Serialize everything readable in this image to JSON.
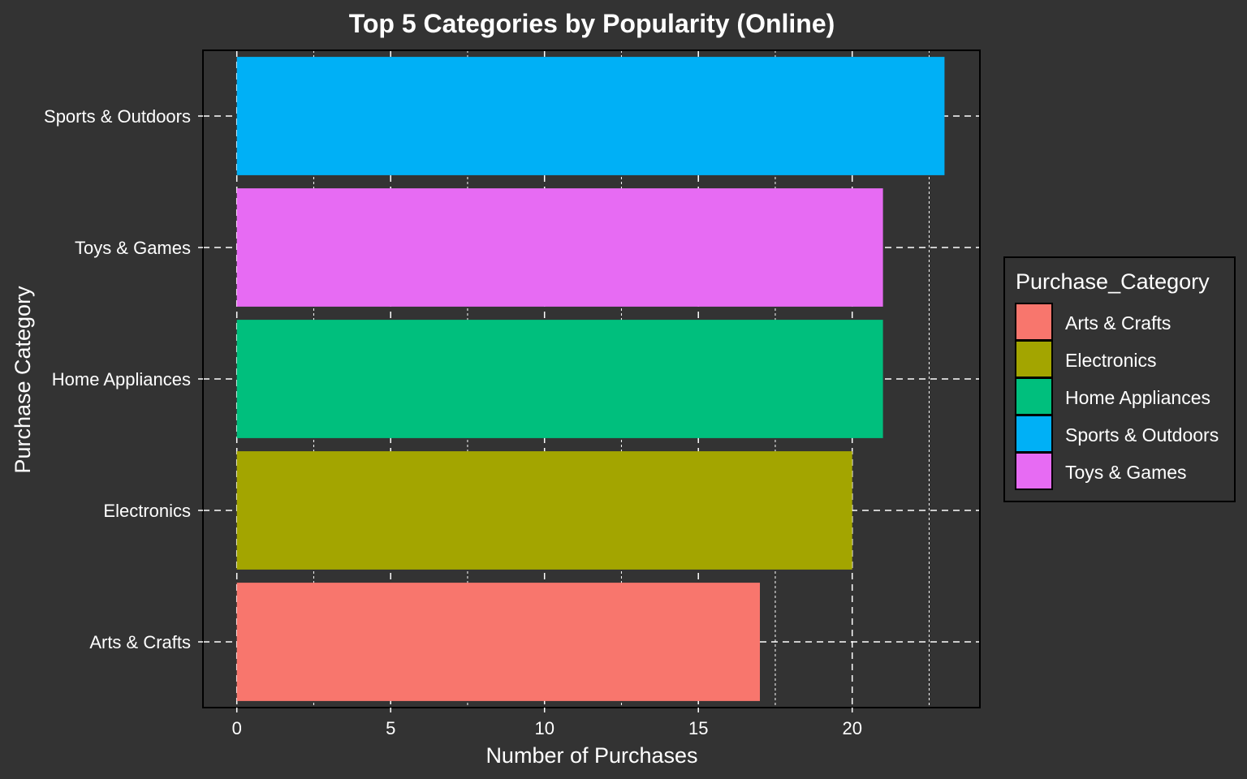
{
  "chart_data": {
    "type": "bar",
    "orientation": "horizontal",
    "title": "Top 5 Categories by Popularity (Online)",
    "xlabel": "Number of Purchases",
    "ylabel": "Purchase Category",
    "categories": [
      "Sports & Outdoors",
      "Toys & Games",
      "Home Appliances",
      "Electronics",
      "Arts & Crafts"
    ],
    "values": [
      23,
      21,
      21,
      20,
      17
    ],
    "bar_colors": [
      "#00B0F6",
      "#E76BF3",
      "#00BF7D",
      "#A3A500",
      "#F8766D"
    ],
    "xlim": [
      -1.1,
      24.15
    ],
    "x_ticks": [
      "0",
      "5",
      "10",
      "15",
      "20"
    ],
    "grid": true,
    "grid_style": "dashed",
    "legend": {
      "title": "Purchase_Category",
      "position": "right",
      "items": [
        {
          "label": "Arts & Crafts",
          "color": "#F8766D"
        },
        {
          "label": "Electronics",
          "color": "#A3A500"
        },
        {
          "label": "Home Appliances",
          "color": "#00BF7D"
        },
        {
          "label": "Sports & Outdoors",
          "color": "#00B0F6"
        },
        {
          "label": "Toys & Games",
          "color": "#E76BF3"
        }
      ]
    },
    "background_color": "#333333",
    "text_color": "#ffffff"
  }
}
